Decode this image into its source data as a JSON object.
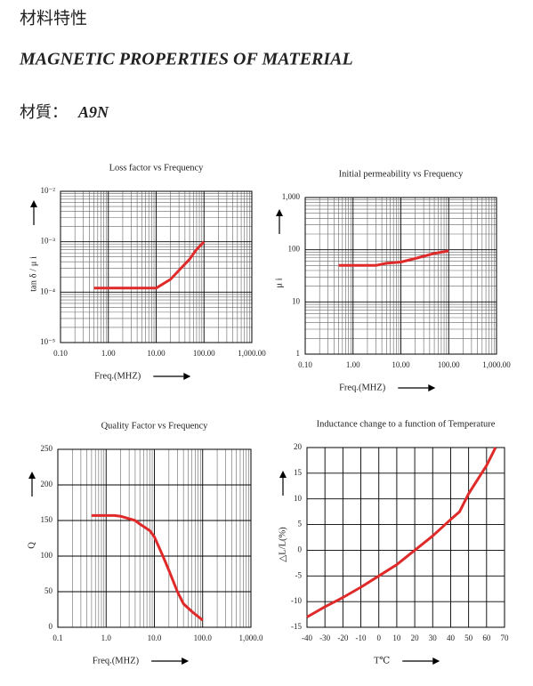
{
  "header": {
    "title_cn": "材料特性",
    "title_en": "MAGNETIC PROPERTIES OF MATERIAL",
    "material_label": "材質：",
    "material": "A9N"
  },
  "chart_data": [
    {
      "type": "line",
      "title": "Loss factor vs Frequency",
      "x_label": "Freq.(MHZ)",
      "y_label": "tan δ / μ i",
      "xscale": "log",
      "yscale": "log",
      "grid": true,
      "xlim": [
        0.1,
        1000
      ],
      "xticks": [
        {
          "value": 0.1,
          "label": "0.10"
        },
        {
          "value": 1,
          "label": "1.00"
        },
        {
          "value": 10,
          "label": "10.00"
        },
        {
          "value": 100,
          "label": "100.00"
        },
        {
          "value": 1000,
          "label": "1,000.00"
        }
      ],
      "ylim": [
        1e-05,
        0.01
      ],
      "yticks": [
        {
          "value": 1e-05,
          "label": "10⁻⁵"
        },
        {
          "value": 0.0001,
          "label": "10⁻⁴"
        },
        {
          "value": 0.001,
          "label": "10⁻³"
        },
        {
          "value": 0.01,
          "label": "10⁻²"
        }
      ],
      "color": "#e02a2a",
      "x": [
        0.5,
        1,
        2,
        5,
        10,
        20,
        30,
        50,
        70,
        100
      ],
      "values": [
        0.00012,
        0.00012,
        0.00012,
        0.00012,
        0.00012,
        0.00018,
        0.00027,
        0.00045,
        0.0007,
        0.001
      ]
    },
    {
      "type": "line",
      "title": "Initial permeability vs Frequency",
      "x_label": "Freq.(MHZ)",
      "y_label": "μ i",
      "xscale": "log",
      "yscale": "log",
      "grid": true,
      "xlim": [
        0.1,
        1000
      ],
      "xticks": [
        {
          "value": 0.1,
          "label": "0.10"
        },
        {
          "value": 1,
          "label": "1.00"
        },
        {
          "value": 10,
          "label": "10.00"
        },
        {
          "value": 100,
          "label": "100.00"
        },
        {
          "value": 1000,
          "label": "1,000.00"
        }
      ],
      "ylim": [
        1,
        1000
      ],
      "yticks": [
        1,
        10,
        100,
        {
          "value": 1000,
          "label": "1,000"
        }
      ],
      "color": "#e02a2a",
      "x": [
        0.5,
        1,
        3,
        5,
        10,
        20,
        50,
        100
      ],
      "values": [
        50,
        50,
        50,
        55,
        58,
        68,
        85,
        95
      ]
    },
    {
      "type": "line",
      "title": "Quality  Factor vs Frequency",
      "x_label": "Freq.(MHZ)",
      "y_label": "Q",
      "xscale": "log",
      "yscale": "linear",
      "grid": true,
      "xlim": [
        0.1,
        1000
      ],
      "xticks": [
        0.1,
        {
          "value": 1,
          "label": "1.0"
        },
        {
          "value": 10,
          "label": "10.0"
        },
        {
          "value": 100,
          "label": "100.0"
        },
        {
          "value": 1000,
          "label": "1,000.0"
        }
      ],
      "ylim": [
        0,
        250
      ],
      "yticks": [
        0,
        50,
        100,
        150,
        200,
        250
      ],
      "color": "#e02a2a",
      "x": [
        0.5,
        1.5,
        2,
        4,
        5,
        8,
        10,
        15,
        20,
        30,
        40,
        60,
        100
      ],
      "values": [
        157,
        157,
        156,
        150,
        145,
        136,
        127,
        100,
        80,
        50,
        33,
        22,
        10
      ]
    },
    {
      "type": "line",
      "title": "Inductance change to a function  of  Temperature",
      "x_label": "T℃",
      "y_label": "△L/L(%)",
      "xscale": "linear",
      "yscale": "linear",
      "grid": true,
      "xlim": [
        -40,
        70
      ],
      "xticks": [
        -40,
        -30,
        -20,
        -10,
        0,
        10,
        20,
        30,
        40,
        50,
        60,
        70
      ],
      "ylim": [
        -15,
        20
      ],
      "yticks": [
        -15,
        -10,
        -5,
        0,
        5,
        10,
        15,
        20
      ],
      "color": "#e02a2a",
      "x": [
        -40,
        -30,
        -20,
        -10,
        0,
        10,
        20,
        30,
        40,
        45,
        50,
        60,
        65
      ],
      "values": [
        -13,
        -11,
        -9.2,
        -7.2,
        -5,
        -2.8,
        0,
        2.8,
        6,
        7.5,
        11,
        16.5,
        20
      ]
    }
  ]
}
